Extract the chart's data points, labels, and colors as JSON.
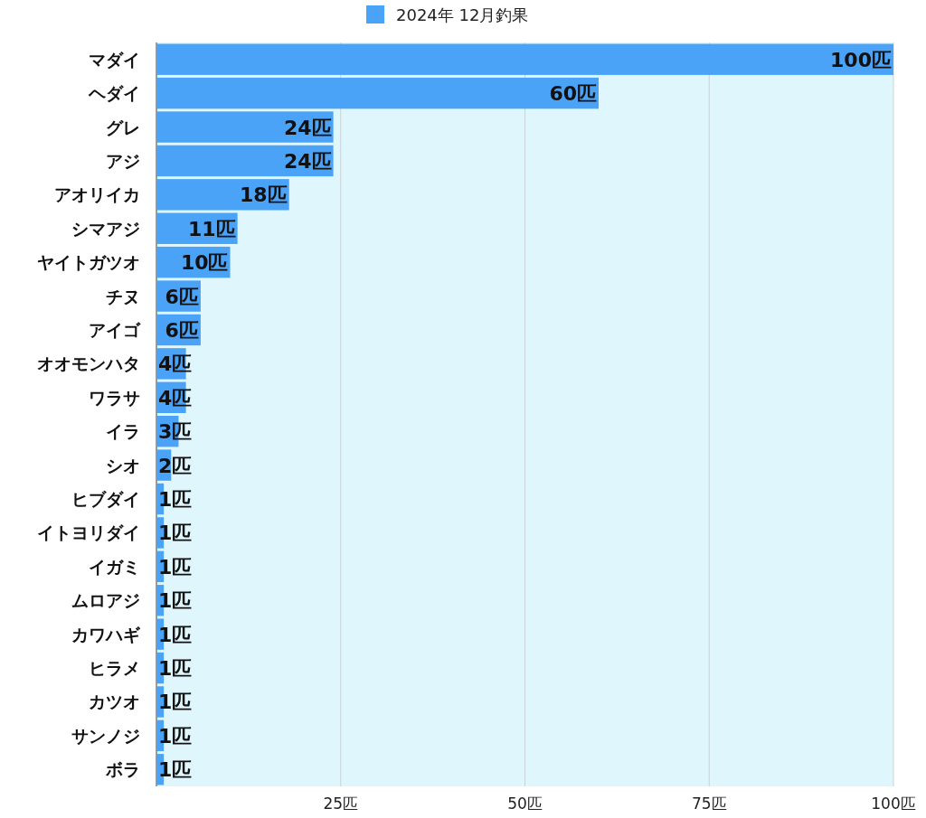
{
  "chart_data": {
    "type": "bar",
    "orientation": "horizontal",
    "categories": [
      "マダイ",
      "ヘダイ",
      "グレ",
      "アジ",
      "アオリイカ",
      "シマアジ",
      "ヤイトガツオ",
      "チヌ",
      "アイゴ",
      "オオモンハタ",
      "ワラサ",
      "イラ",
      "シオ",
      "ヒブダイ",
      "イトヨリダイ",
      "イガミ",
      "ムロアジ",
      "カワハギ",
      "ヒラメ",
      "カツオ",
      "サンノジ",
      "ボラ"
    ],
    "series": [
      {
        "name": "2024年 12月釣果",
        "color": "#4aa3f7",
        "values": [
          100,
          60,
          24,
          24,
          18,
          11,
          10,
          6,
          6,
          4,
          4,
          3,
          2,
          1,
          1,
          1,
          1,
          1,
          1,
          1,
          1,
          1
        ],
        "value_labels": [
          "100匹",
          "60匹",
          "24匹",
          "24匹",
          "18匹",
          "11匹",
          "10匹",
          "6匹",
          "6匹",
          "4匹",
          "4匹",
          "3匹",
          "2匹",
          "1匹",
          "1匹",
          "1匹",
          "1匹",
          "1匹",
          "1匹",
          "1匹",
          "1匹",
          "1匹"
        ]
      }
    ],
    "xlim": [
      0,
      100
    ],
    "xticks": [
      {
        "value": 0,
        "label": null
      },
      {
        "value": 25,
        "label": "25匹"
      },
      {
        "value": 50,
        "label": "50匹"
      },
      {
        "value": 75,
        "label": "75匹"
      },
      {
        "value": 100,
        "label": "100匹"
      }
    ],
    "grid": "x",
    "legend": "top"
  }
}
